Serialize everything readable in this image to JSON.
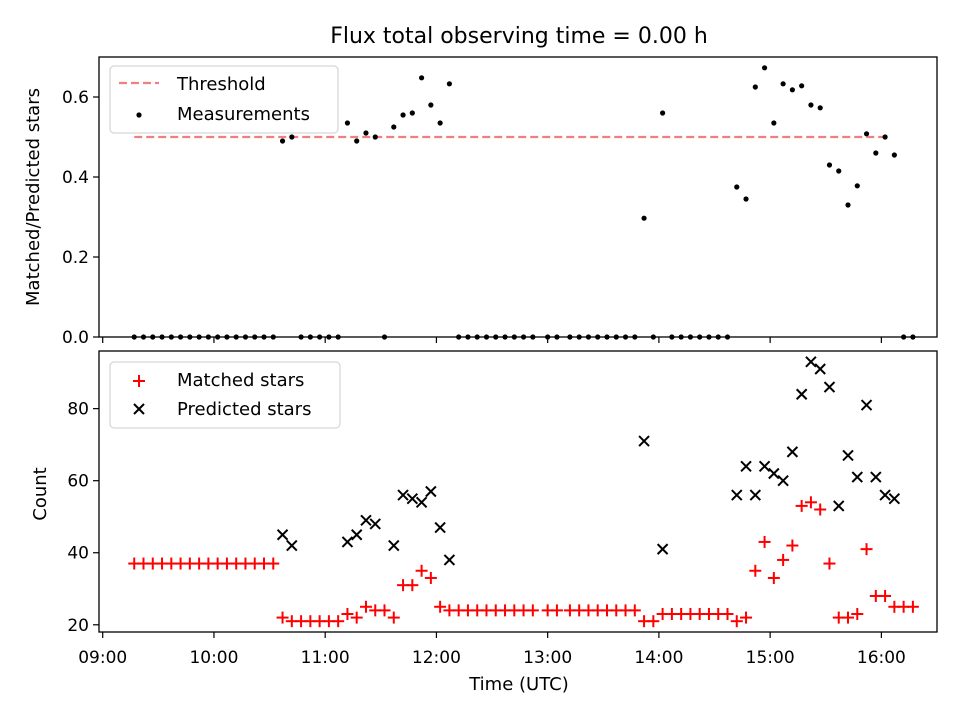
{
  "chart_data": [
    {
      "type": "scatter",
      "title": "Flux total observing time = 0.00 h",
      "xlabel": "",
      "ylabel": "Matched/Predicted stars",
      "ylim": [
        0,
        0.7
      ],
      "yticks": [
        "0.0",
        "0.2",
        "0.4",
        "0.6"
      ],
      "grid": false,
      "legend_position": "upper-left",
      "legend": [
        "Threshold",
        "Measurements"
      ],
      "threshold": {
        "name": "Threshold",
        "value": 0.5,
        "x_range": [
          "09:17",
          "16:02"
        ],
        "color": "#f08080"
      },
      "series": [
        {
          "name": "Measurements",
          "color": "#000000",
          "points": [
            [
              "09:17",
              0
            ],
            [
              "09:22",
              0
            ],
            [
              "09:27",
              0
            ],
            [
              "09:32",
              0
            ],
            [
              "09:37",
              0
            ],
            [
              "09:42",
              0
            ],
            [
              "09:47",
              0
            ],
            [
              "09:52",
              0
            ],
            [
              "09:57",
              0
            ],
            [
              "10:02",
              0
            ],
            [
              "10:07",
              0
            ],
            [
              "10:12",
              0
            ],
            [
              "10:17",
              0
            ],
            [
              "10:22",
              0
            ],
            [
              "10:27",
              0
            ],
            [
              "10:32",
              0
            ],
            [
              "10:37",
              0.49
            ],
            [
              "10:42",
              0.5
            ],
            [
              "10:47",
              0
            ],
            [
              "10:52",
              0
            ],
            [
              "10:57",
              0
            ],
            [
              "11:02",
              0
            ],
            [
              "11:07",
              0
            ],
            [
              "11:12",
              0.535
            ],
            [
              "11:17",
              0.49
            ],
            [
              "11:22",
              0.51
            ],
            [
              "11:27",
              0.5
            ],
            [
              "11:32",
              0
            ],
            [
              "11:37",
              0.525
            ],
            [
              "11:42",
              0.555
            ],
            [
              "11:47",
              0.56
            ],
            [
              "11:52",
              0.648
            ],
            [
              "11:57",
              0.58
            ],
            [
              "12:02",
              0.535
            ],
            [
              "12:07",
              0.633
            ],
            [
              "12:12",
              0
            ],
            [
              "12:17",
              0
            ],
            [
              "12:22",
              0
            ],
            [
              "12:27",
              0
            ],
            [
              "12:32",
              0
            ],
            [
              "12:37",
              0
            ],
            [
              "12:42",
              0
            ],
            [
              "12:47",
              0
            ],
            [
              "12:52",
              0
            ],
            [
              "13:00",
              0
            ],
            [
              "13:05",
              0
            ],
            [
              "13:12",
              0
            ],
            [
              "13:17",
              0
            ],
            [
              "13:22",
              0
            ],
            [
              "13:27",
              0
            ],
            [
              "13:32",
              0
            ],
            [
              "13:37",
              0
            ],
            [
              "13:42",
              0
            ],
            [
              "13:47",
              0
            ],
            [
              "13:52",
              0.297
            ],
            [
              "13:57",
              0
            ],
            [
              "14:02",
              0.56
            ],
            [
              "14:07",
              0
            ],
            [
              "14:12",
              0
            ],
            [
              "14:17",
              0
            ],
            [
              "14:22",
              0
            ],
            [
              "14:27",
              0
            ],
            [
              "14:32",
              0
            ],
            [
              "14:37",
              0
            ],
            [
              "14:42",
              0.375
            ],
            [
              "14:47",
              0.345
            ],
            [
              "14:52",
              0.625
            ],
            [
              "14:57",
              0.673
            ],
            [
              "15:02",
              0.535
            ],
            [
              "15:07",
              0.633
            ],
            [
              "15:12",
              0.618
            ],
            [
              "15:17",
              0.628
            ],
            [
              "15:22",
              0.58
            ],
            [
              "15:27",
              0.573
            ],
            [
              "15:32",
              0.43
            ],
            [
              "15:37",
              0.415
            ],
            [
              "15:42",
              0.33
            ],
            [
              "15:47",
              0.378
            ],
            [
              "15:52",
              0.508
            ],
            [
              "15:57",
              0.46
            ],
            [
              "16:02",
              0.5
            ],
            [
              "16:07",
              0.455
            ],
            [
              "16:12",
              0
            ],
            [
              "16:17",
              0
            ]
          ]
        }
      ]
    },
    {
      "type": "scatter",
      "title": "",
      "xlabel": "Time (UTC)",
      "ylabel": "Count",
      "ylim": [
        18,
        96
      ],
      "yticks": [
        "20",
        "40",
        "60",
        "80"
      ],
      "xlim": [
        "08:58",
        "16:30"
      ],
      "xticks": [
        "09:00",
        "10:00",
        "11:00",
        "12:00",
        "13:00",
        "14:00",
        "15:00",
        "16:00"
      ],
      "grid": false,
      "legend_position": "upper-left",
      "legend": [
        "Matched stars",
        "Predicted stars"
      ],
      "series": [
        {
          "name": "Matched stars",
          "marker": "plus",
          "color": "#ff0000",
          "points": [
            [
              "09:17",
              37
            ],
            [
              "09:22",
              37
            ],
            [
              "09:27",
              37
            ],
            [
              "09:32",
              37
            ],
            [
              "09:37",
              37
            ],
            [
              "09:42",
              37
            ],
            [
              "09:47",
              37
            ],
            [
              "09:52",
              37
            ],
            [
              "09:57",
              37
            ],
            [
              "10:02",
              37
            ],
            [
              "10:07",
              37
            ],
            [
              "10:12",
              37
            ],
            [
              "10:17",
              37
            ],
            [
              "10:22",
              37
            ],
            [
              "10:27",
              37
            ],
            [
              "10:32",
              37
            ],
            [
              "10:37",
              22
            ],
            [
              "10:42",
              21
            ],
            [
              "10:47",
              21
            ],
            [
              "10:52",
              21
            ],
            [
              "10:57",
              21
            ],
            [
              "11:02",
              21
            ],
            [
              "11:07",
              21
            ],
            [
              "11:12",
              23
            ],
            [
              "11:17",
              22
            ],
            [
              "11:22",
              25
            ],
            [
              "11:27",
              24
            ],
            [
              "11:32",
              24
            ],
            [
              "11:37",
              22
            ],
            [
              "11:42",
              31
            ],
            [
              "11:47",
              31
            ],
            [
              "11:52",
              35
            ],
            [
              "11:57",
              33
            ],
            [
              "12:02",
              25
            ],
            [
              "12:07",
              24
            ],
            [
              "12:12",
              24
            ],
            [
              "12:17",
              24
            ],
            [
              "12:22",
              24
            ],
            [
              "12:27",
              24
            ],
            [
              "12:32",
              24
            ],
            [
              "12:37",
              24
            ],
            [
              "12:42",
              24
            ],
            [
              "12:47",
              24
            ],
            [
              "12:52",
              24
            ],
            [
              "13:00",
              24
            ],
            [
              "13:05",
              24
            ],
            [
              "13:12",
              24
            ],
            [
              "13:17",
              24
            ],
            [
              "13:22",
              24
            ],
            [
              "13:27",
              24
            ],
            [
              "13:32",
              24
            ],
            [
              "13:37",
              24
            ],
            [
              "13:42",
              24
            ],
            [
              "13:47",
              24
            ],
            [
              "13:52",
              21
            ],
            [
              "13:57",
              21
            ],
            [
              "14:02",
              23
            ],
            [
              "14:07",
              23
            ],
            [
              "14:12",
              23
            ],
            [
              "14:17",
              23
            ],
            [
              "14:22",
              23
            ],
            [
              "14:27",
              23
            ],
            [
              "14:32",
              23
            ],
            [
              "14:37",
              23
            ],
            [
              "14:42",
              21
            ],
            [
              "14:47",
              22
            ],
            [
              "14:52",
              35
            ],
            [
              "14:57",
              43
            ],
            [
              "15:02",
              33
            ],
            [
              "15:07",
              38
            ],
            [
              "15:12",
              42
            ],
            [
              "15:17",
              53
            ],
            [
              "15:22",
              54
            ],
            [
              "15:27",
              52
            ],
            [
              "15:32",
              37
            ],
            [
              "15:37",
              22
            ],
            [
              "15:42",
              22
            ],
            [
              "15:47",
              23
            ],
            [
              "15:52",
              41
            ],
            [
              "15:57",
              28
            ],
            [
              "16:02",
              28
            ],
            [
              "16:07",
              25
            ],
            [
              "16:12",
              25
            ],
            [
              "16:17",
              25
            ]
          ]
        },
        {
          "name": "Predicted stars",
          "marker": "x",
          "color": "#000000",
          "points": [
            [
              "10:37",
              45
            ],
            [
              "10:42",
              42
            ],
            [
              "11:12",
              43
            ],
            [
              "11:17",
              45
            ],
            [
              "11:22",
              49
            ],
            [
              "11:27",
              48
            ],
            [
              "11:37",
              42
            ],
            [
              "11:42",
              56
            ],
            [
              "11:47",
              55
            ],
            [
              "11:52",
              54
            ],
            [
              "11:57",
              57
            ],
            [
              "12:02",
              47
            ],
            [
              "12:07",
              38
            ],
            [
              "13:52",
              71
            ],
            [
              "14:02",
              41
            ],
            [
              "14:42",
              56
            ],
            [
              "14:47",
              64
            ],
            [
              "14:52",
              56
            ],
            [
              "14:57",
              64
            ],
            [
              "15:02",
              62
            ],
            [
              "15:07",
              60
            ],
            [
              "15:12",
              68
            ],
            [
              "15:17",
              84
            ],
            [
              "15:22",
              93
            ],
            [
              "15:27",
              91
            ],
            [
              "15:32",
              86
            ],
            [
              "15:37",
              53
            ],
            [
              "15:42",
              67
            ],
            [
              "15:47",
              61
            ],
            [
              "15:52",
              81
            ],
            [
              "15:57",
              61
            ],
            [
              "16:02",
              56
            ],
            [
              "16:07",
              55
            ]
          ]
        }
      ]
    }
  ]
}
